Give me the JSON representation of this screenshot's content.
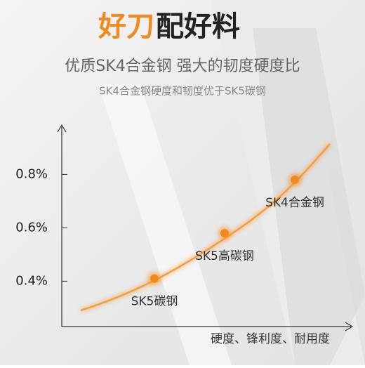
{
  "chart_data": {
    "type": "line",
    "title": {
      "highlight": "好刀",
      "rest": "配好料"
    },
    "subtitle": "优质SK4合金钢 强大的韧度硬度比",
    "note": "SK4合金钢硬度和韧度优于SK5碳钢",
    "x_label": "硬度、锋利度、耐用度",
    "categories": [
      "SK5碳钢",
      "SK5高碳钢",
      "SK4合金钢"
    ],
    "values": [
      0.41,
      0.58,
      0.78
    ],
    "color": "#f28a1e",
    "ylim": [
      0.23,
      0.98
    ],
    "yticks": [
      {
        "value": 0.4,
        "label": "0.4%"
      },
      {
        "value": 0.6,
        "label": "0.6%"
      },
      {
        "value": 0.8,
        "label": "0.8%"
      }
    ]
  }
}
